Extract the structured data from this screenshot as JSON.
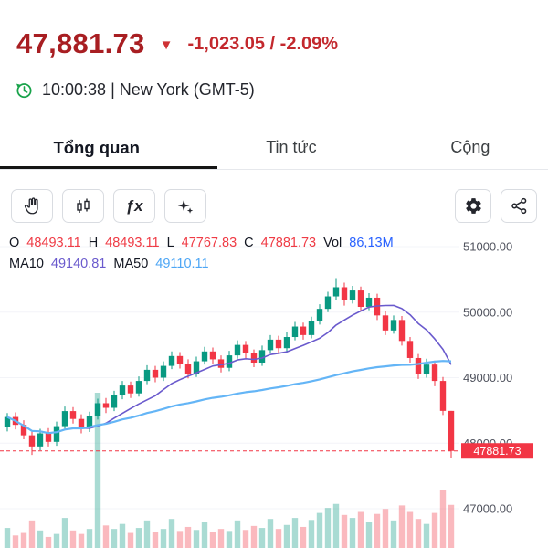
{
  "header": {
    "price": "47,881.73",
    "triangle": "▼",
    "change": "-1,023.05 / -2.09%",
    "session": "10:00:38 | New York (GMT-5)",
    "price_color": "#a81e22",
    "change_color": "#c3282d",
    "clock_color": "#18a34a"
  },
  "tabs": {
    "items": [
      {
        "label": "Tổng quan",
        "active": true
      },
      {
        "label": "Tin tức",
        "active": false
      },
      {
        "label": "Cộng",
        "active": false
      }
    ]
  },
  "toolbar": {
    "fx_label": "ƒx"
  },
  "legend": {
    "o_label": "O",
    "o_value": "48493.11",
    "h_label": "H",
    "h_value": "48493.11",
    "l_label": "L",
    "l_value": "47767.83",
    "c_label": "C",
    "c_value": "47881.73",
    "vol_label": "Vol",
    "vol_value": "86,13M",
    "ma10_label": "MA10",
    "ma10_value": "49140.81",
    "ma50_label": "MA50",
    "ma50_value": "49110.11"
  },
  "chart_data": {
    "type": "candlestick",
    "y_axis": {
      "min": 47000,
      "max": 51000,
      "ticks": [
        {
          "value": 51000,
          "label": "51000.00"
        },
        {
          "value": 50000,
          "label": "50000.00"
        },
        {
          "value": 49000,
          "label": "49000.00"
        },
        {
          "value": 48000,
          "label": "48000.00"
        },
        {
          "value": 47000,
          "label": "47000.00"
        }
      ]
    },
    "price_line": {
      "value": 47881.73,
      "label": "47881.73"
    },
    "colors": {
      "up": "#089981",
      "down": "#f23645",
      "up_vol": "rgba(8,153,129,0.35)",
      "down_vol": "rgba(242,54,69,0.35)",
      "axis_text": "#50535e"
    },
    "ma": [
      {
        "name": "MA10",
        "window": 10,
        "color": "#6a5acd"
      },
      {
        "name": "MA50",
        "window": 50,
        "color": "#64b5f6"
      }
    ],
    "candles": [
      [
        48250,
        48460,
        48180,
        48400
      ],
      [
        48400,
        48470,
        48210,
        48280
      ],
      [
        48280,
        48350,
        48060,
        48120
      ],
      [
        48120,
        48190,
        47820,
        47950
      ],
      [
        47950,
        48220,
        47890,
        48150
      ],
      [
        48150,
        48230,
        47950,
        48020
      ],
      [
        48020,
        48330,
        47960,
        48260
      ],
      [
        48260,
        48560,
        48200,
        48490
      ],
      [
        48490,
        48550,
        48300,
        48370
      ],
      [
        48370,
        48440,
        48150,
        48230
      ],
      [
        48230,
        48480,
        48170,
        48420
      ],
      [
        48420,
        48680,
        48360,
        48610
      ],
      [
        48610,
        48690,
        48460,
        48540
      ],
      [
        48540,
        48800,
        48490,
        48730
      ],
      [
        48730,
        48950,
        48670,
        48880
      ],
      [
        48880,
        48940,
        48690,
        48760
      ],
      [
        48760,
        49020,
        48710,
        48950
      ],
      [
        48950,
        49190,
        48900,
        49120
      ],
      [
        49120,
        49180,
        48930,
        49000
      ],
      [
        49000,
        49250,
        48950,
        49180
      ],
      [
        49180,
        49400,
        49130,
        49330
      ],
      [
        49330,
        49390,
        49140,
        49210
      ],
      [
        49210,
        49280,
        48990,
        49060
      ],
      [
        49060,
        49320,
        49010,
        49250
      ],
      [
        49250,
        49470,
        49200,
        49400
      ],
      [
        49400,
        49460,
        49210,
        49280
      ],
      [
        49280,
        49340,
        49080,
        49150
      ],
      [
        49150,
        49410,
        49100,
        49340
      ],
      [
        49340,
        49570,
        49290,
        49500
      ],
      [
        49500,
        49560,
        49300,
        49370
      ],
      [
        49370,
        49430,
        49160,
        49230
      ],
      [
        49230,
        49490,
        49180,
        49420
      ],
      [
        49420,
        49650,
        49370,
        49580
      ],
      [
        49580,
        49640,
        49380,
        49450
      ],
      [
        49450,
        49690,
        49400,
        49620
      ],
      [
        49620,
        49850,
        49570,
        49780
      ],
      [
        49780,
        49840,
        49580,
        49650
      ],
      [
        49650,
        49930,
        49600,
        49860
      ],
      [
        49860,
        50120,
        49810,
        50050
      ],
      [
        50050,
        50310,
        50000,
        50240
      ],
      [
        50240,
        50520,
        50190,
        50380
      ],
      [
        50380,
        50450,
        50100,
        50180
      ],
      [
        50180,
        50400,
        50130,
        50330
      ],
      [
        50330,
        50390,
        50010,
        50080
      ],
      [
        50080,
        50290,
        50030,
        50220
      ],
      [
        50220,
        50280,
        49880,
        49950
      ],
      [
        49950,
        50010,
        49650,
        49720
      ],
      [
        49720,
        49950,
        49670,
        49880
      ],
      [
        49880,
        49940,
        49490,
        49560
      ],
      [
        49560,
        49620,
        49230,
        49300
      ],
      [
        49300,
        49360,
        48980,
        49050
      ],
      [
        49050,
        49290,
        49000,
        49200
      ],
      [
        49200,
        49260,
        48870,
        48950
      ],
      [
        48950,
        49010,
        48430,
        48493.11
      ],
      [
        48493.11,
        48493.11,
        47767.83,
        47881.73
      ]
    ],
    "volumes": [
      40,
      25,
      30,
      55,
      35,
      22,
      28,
      60,
      35,
      28,
      38,
      310,
      45,
      38,
      48,
      30,
      40,
      55,
      32,
      38,
      58,
      34,
      42,
      36,
      52,
      32,
      38,
      34,
      55,
      36,
      44,
      40,
      58,
      38,
      46,
      60,
      42,
      56,
      70,
      80,
      88,
      66,
      60,
      72,
      52,
      68,
      78,
      55,
      85,
      72,
      58,
      48,
      70,
      115,
      86.13
    ]
  }
}
